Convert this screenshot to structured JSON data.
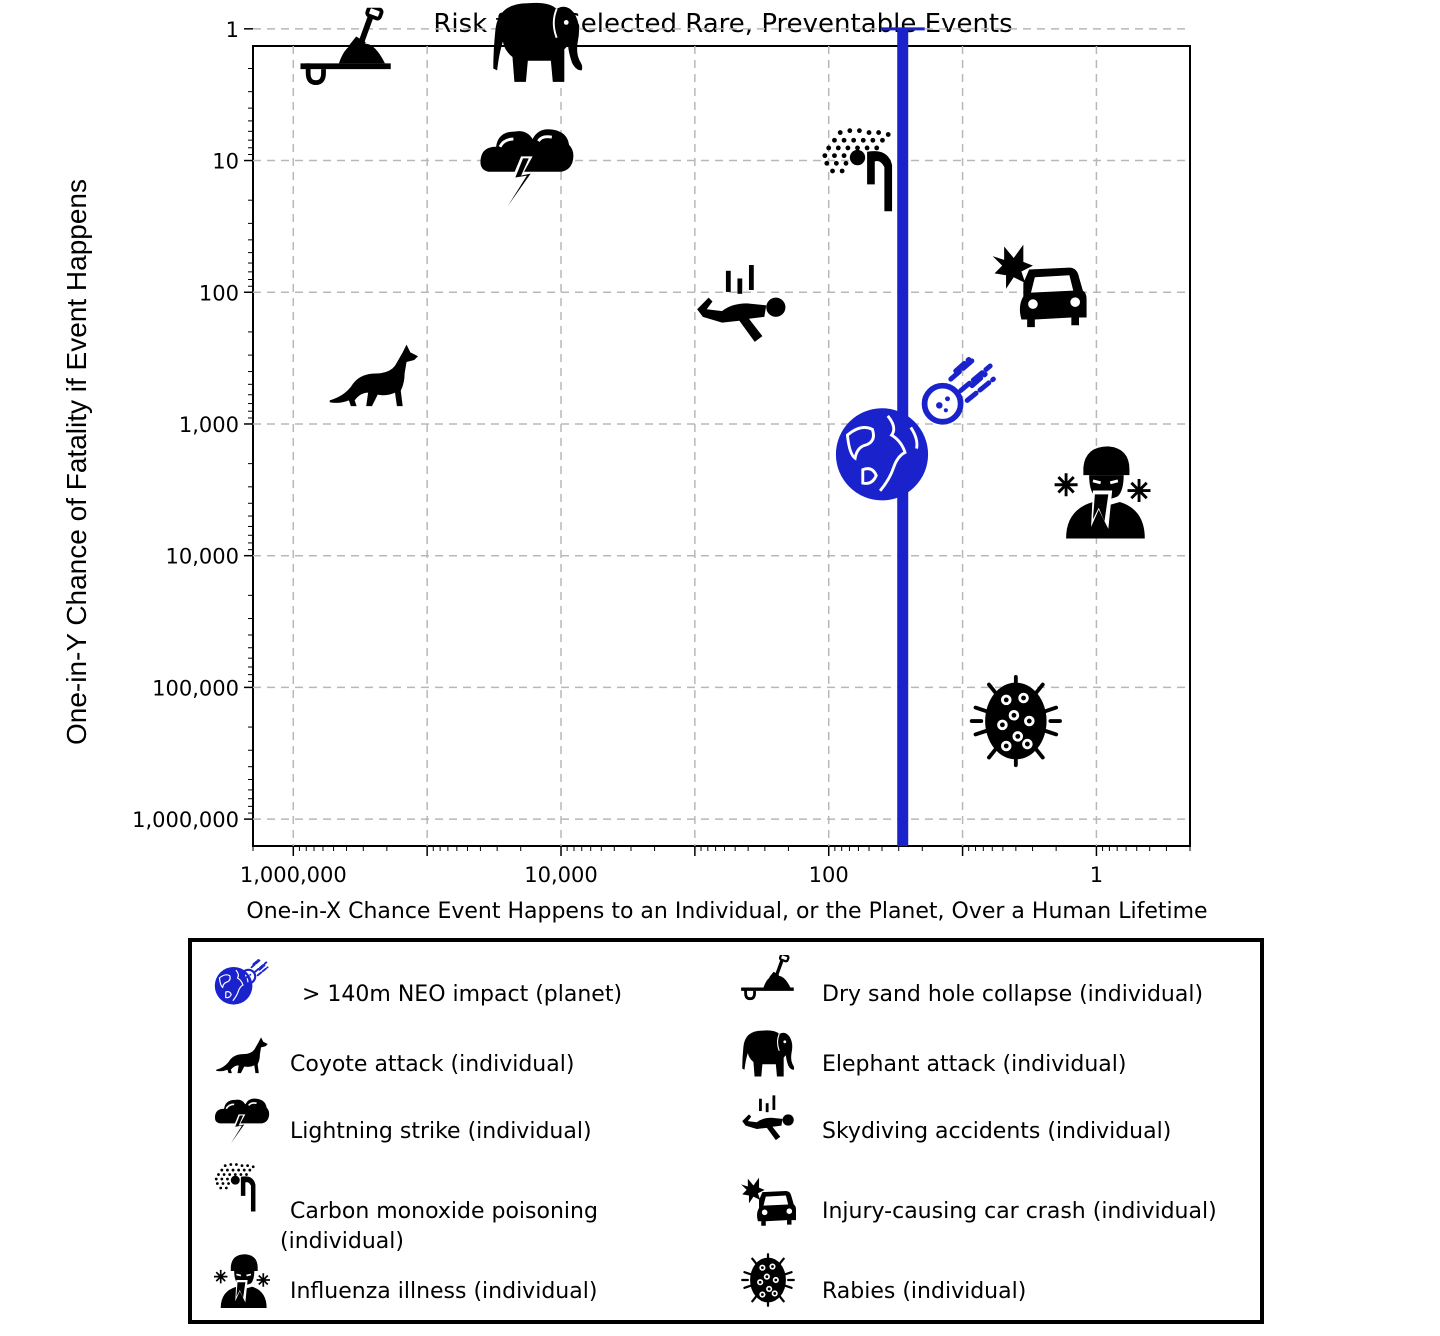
{
  "chart_data": {
    "type": "scatter",
    "title": "Risk from Selected Rare, Preventable Events",
    "xlabel": "One-in-X Chance Event Happens to an Individual, or the Planet, Over a Human Lifetime",
    "ylabel": "One-in-Y Chance of Fatality if Event Happens",
    "x_scale": "log",
    "y_scale": "log",
    "x_reversed": true,
    "y_reversed": true,
    "xlim": [
      2000000,
      0.2
    ],
    "ylim": [
      1.35,
      1600000
    ],
    "x_ticks": [
      1000000,
      10000,
      100,
      1
    ],
    "x_tick_labels": [
      "1,000,000",
      "10,000",
      "100",
      "1"
    ],
    "y_ticks": [
      1,
      10,
      100,
      1000,
      10000,
      100000,
      1000000
    ],
    "y_tick_labels": [
      "1",
      "10",
      "100",
      "1,000",
      "10,000",
      "100,000",
      "1,000,000"
    ],
    "grid": true,
    "range_bar": {
      "series": "neo",
      "x": 28,
      "y_from": 1,
      "y_to": 1600000,
      "color": "#1a22cc"
    },
    "series": [
      {
        "id": "neo",
        "name": "> 140m NEO impact (planet)",
        "x": 40,
        "y": 1700,
        "icon": "earth-asteroid-icon",
        "color": "#1a22cc"
      },
      {
        "id": "sand",
        "name": "Dry sand hole collapse (individual)",
        "x": 400000,
        "y": 1.6,
        "icon": "shovel-sand-icon",
        "color": "#000000"
      },
      {
        "id": "coyote",
        "name": "Coyote attack (individual)",
        "x": 250000,
        "y": 400,
        "icon": "coyote-icon",
        "color": "#000000"
      },
      {
        "id": "elephant",
        "name": "Elephant attack (individual)",
        "x": 15000,
        "y": 1.25,
        "icon": "elephant-icon",
        "color": "#000000"
      },
      {
        "id": "lightning",
        "name": "Lightning strike (individual)",
        "x": 18000,
        "y": 11,
        "icon": "lightning-cloud-icon",
        "color": "#000000"
      },
      {
        "id": "skydive",
        "name": "Skydiving accidents (individual)",
        "x": 450,
        "y": 130,
        "icon": "skydiver-icon",
        "color": "#000000"
      },
      {
        "id": "co",
        "name": "Carbon monoxide poisoning (individual)",
        "x": 50,
        "y": 12,
        "icon": "carbon-monoxide-icon",
        "color": "#000000"
      },
      {
        "id": "car",
        "name": "Injury-causing car crash (individual)",
        "x": 2.7,
        "y": 85,
        "icon": "car-crash-icon",
        "color": "#000000"
      },
      {
        "id": "flu",
        "name": "Influenza illness (individual)",
        "x": 0.9,
        "y": 3200,
        "icon": "influenza-icon",
        "color": "#000000"
      },
      {
        "id": "rabies",
        "name": "Rabies (individual)",
        "x": 4,
        "y": 180000,
        "icon": "rabies-virus-icon",
        "color": "#000000"
      }
    ]
  },
  "legend": {
    "items": [
      {
        "label": "> 140m NEO impact (planet)",
        "label2": "",
        "icon": "earth-asteroid-icon"
      },
      {
        "label": "Dry sand hole collapse (individual)",
        "label2": "",
        "icon": "shovel-sand-icon"
      },
      {
        "label": "Coyote attack (individual)",
        "label2": "",
        "icon": "coyote-icon"
      },
      {
        "label": "Elephant attack (individual)",
        "label2": "",
        "icon": "elephant-icon"
      },
      {
        "label": "Lightning strike (individual)",
        "label2": "",
        "icon": "lightning-cloud-icon"
      },
      {
        "label": "Skydiving accidents (individual)",
        "label2": "",
        "icon": "skydiver-icon"
      },
      {
        "label": "Carbon monoxide poisoning",
        "label2": "(individual)",
        "icon": "carbon-monoxide-icon"
      },
      {
        "label": "Injury-causing car crash (individual)",
        "label2": "",
        "icon": "car-crash-icon"
      },
      {
        "label": "Influenza illness (individual)",
        "label2": "",
        "icon": "influenza-icon"
      },
      {
        "label": "Rabies (individual)",
        "label2": "",
        "icon": "rabies-virus-icon"
      }
    ]
  }
}
